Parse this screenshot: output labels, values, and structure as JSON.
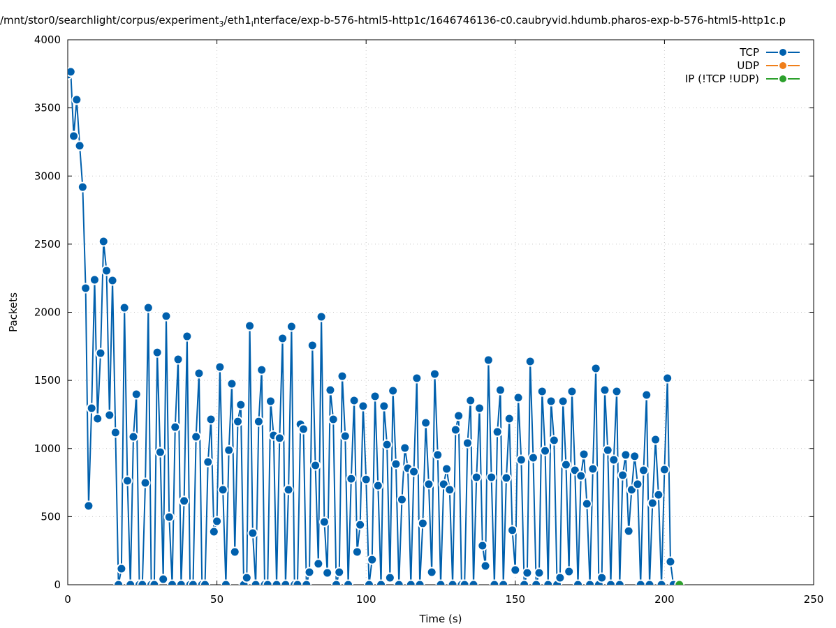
{
  "chart_data": {
    "type": "line",
    "title_parts": [
      {
        "text": "/mnt/stor0/searchlight/corpus/experiment",
        "sub": false
      },
      {
        "text": "3",
        "sub": true
      },
      {
        "text": "/eth1",
        "sub": false
      },
      {
        "text": "i",
        "sub": true
      },
      {
        "text": "nterface/exp-b-576-html5-http1c/1646746136-c0.caubryvid.hdumb.pharos-exp-b-576-html5-http1c.p",
        "sub": false
      }
    ],
    "xlabel": "Time (s)",
    "ylabel": "Packets",
    "xlim": [
      0,
      250
    ],
    "ylim": [
      0,
      4000
    ],
    "xticks": [
      0,
      50,
      100,
      150,
      200,
      250
    ],
    "yticks": [
      0,
      500,
      1000,
      1500,
      2000,
      2500,
      3000,
      3500,
      4000
    ],
    "grid": true,
    "legend_position": "top-right",
    "series": [
      {
        "name": "TCP",
        "color": "#0060ad",
        "x_start": 0,
        "values": [
          3744,
          3765,
          3293,
          3560,
          3222,
          2919,
          2177,
          579,
          1296,
          2238,
          1219,
          1700,
          2520,
          2305,
          1245,
          2233,
          1117,
          0,
          118,
          2033,
          763,
          0,
          1086,
          1398,
          0,
          0,
          748,
          2033,
          0,
          0,
          1705,
          973,
          41,
          1972,
          497,
          0,
          1157,
          1654,
          0,
          615,
          1823,
          0,
          0,
          1086,
          1552,
          0,
          0,
          901,
          1214,
          389,
          466,
          1598,
          697,
          0,
          988,
          1475,
          241,
          1198,
          1321,
          0,
          51,
          1900,
          379,
          0,
          1198,
          1577,
          0,
          0,
          1347,
          1096,
          0,
          1076,
          1808,
          0,
          697,
          1895,
          0,
          0,
          1178,
          1142,
          0,
          92,
          1757,
          876,
          154,
          1967,
          461,
          87,
          1429,
          1214,
          0,
          92,
          1531,
          1091,
          0,
          778,
          1352,
          241,
          440,
          1311,
          773,
          0,
          184,
          1383,
          727,
          0,
          1311,
          1029,
          51,
          1424,
          886,
          0,
          625,
          1004,
          855,
          0,
          830,
          1516,
          0,
          451,
          1188,
          738,
          92,
          1547,
          953,
          0,
          738,
          850,
          697,
          0,
          1137,
          1240,
          0,
          0,
          1040,
          1352,
          0,
          789,
          1296,
          287,
          138,
          1649,
          789,
          0,
          1122,
          1429,
          0,
          784,
          1219,
          400,
          108,
          1373,
          917,
          0,
          87,
          1639,
          932,
          0,
          87,
          1419,
          983,
          0,
          1347,
          1060,
          0,
          51,
          1347,
          881,
          97,
          1419,
          840,
          0,
          799,
          958,
          594,
          0,
          850,
          1588,
          0,
          51,
          1429,
          988,
          0,
          917,
          1419,
          0,
          804,
          953,
          394,
          697,
          943,
          738,
          0,
          840,
          1393,
          0,
          599,
          1065,
          660,
          0,
          845,
          1516,
          169,
          0
        ]
      },
      {
        "name": "UDP",
        "color": "#f07f1a",
        "x_start": 0,
        "values": []
      },
      {
        "name": "IP (!TCP  !UDP)",
        "color": "#2ca02c",
        "x_start": 205,
        "values": [
          0
        ]
      }
    ]
  }
}
